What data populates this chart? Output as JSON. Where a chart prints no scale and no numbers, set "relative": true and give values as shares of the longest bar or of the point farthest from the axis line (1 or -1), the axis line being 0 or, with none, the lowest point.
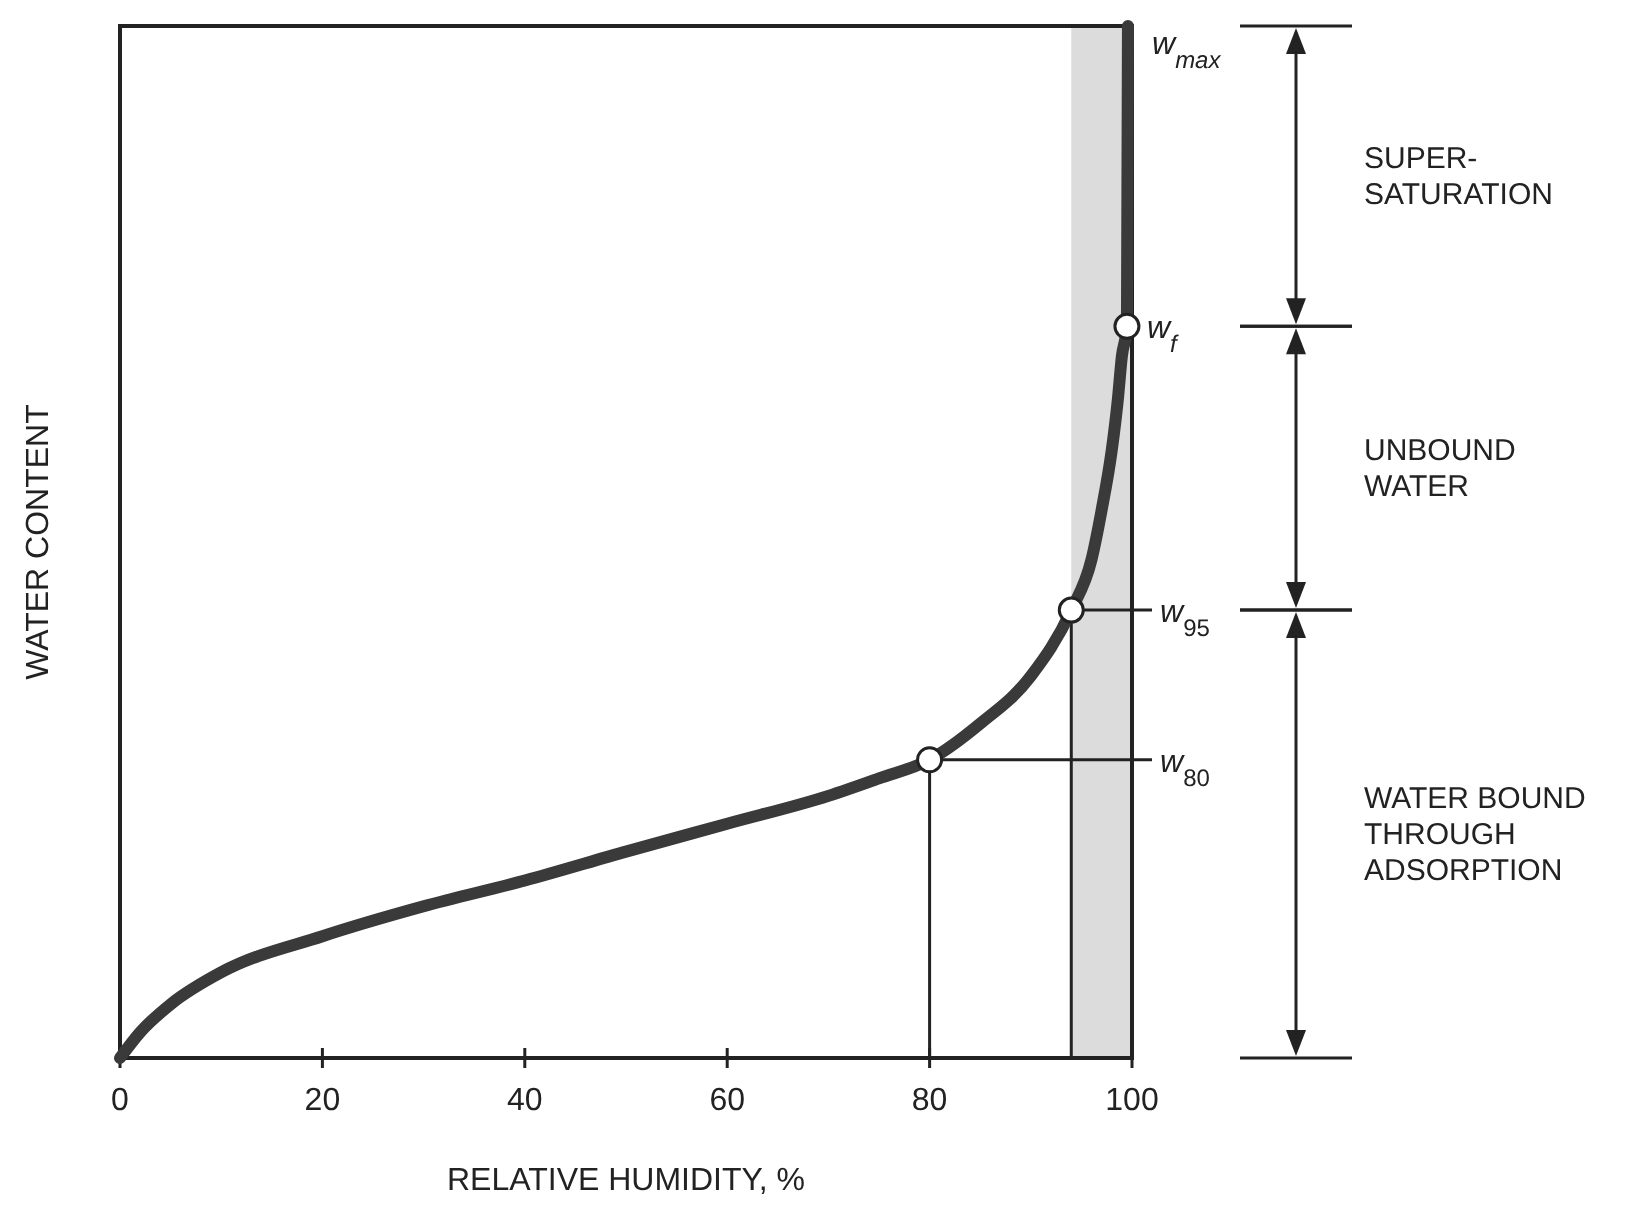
{
  "chart_data": {
    "type": "line",
    "relative": true,
    "xlabel": "RELATIVE HUMIDITY, %",
    "ylabel": "WATER CONTENT",
    "xlim": [
      0,
      100
    ],
    "xticks": [
      0,
      20,
      40,
      60,
      80,
      100
    ],
    "grid": false,
    "marker": "none",
    "line_style": "solid",
    "series": [
      {
        "color": "#3a3a3a",
        "x": [
          0,
          2,
          5,
          10,
          20,
          30,
          40,
          50,
          60,
          70,
          75,
          80,
          85,
          90,
          94,
          96,
          97,
          98,
          98.6,
          99,
          99.5,
          99.6
        ],
        "values": [
          0,
          0.025,
          0.052,
          0.083,
          0.118,
          0.147,
          0.172,
          0.2,
          0.227,
          0.254,
          0.271,
          0.289,
          0.324,
          0.37,
          0.434,
          0.483,
          0.531,
          0.589,
          0.638,
          0.68,
          0.709,
          1
        ]
      },
      {
        "type": "scatter",
        "color": "#ffffff",
        "marker": "circle",
        "x": [
          80,
          94,
          99.5
        ],
        "values": [
          0.289,
          0.434,
          0.709
        ]
      }
    ],
    "ref_lines": [
      {
        "axis": "x",
        "value": 80
      },
      {
        "axis": "x",
        "value": 94
      },
      {
        "axis": "y",
        "value": 0.289,
        "label": "w$_{80}$"
      },
      {
        "axis": "y",
        "value": 0.434,
        "label": "w$_{95}$"
      }
    ],
    "bands": [
      {
        "axis": "x",
        "from": 94,
        "to": 100,
        "color": "#dcdcdc"
      }
    ],
    "annotations": [
      {
        "text": "w$_{max}$",
        "x": 100,
        "y": 1
      },
      {
        "text": "w$_{f}$",
        "x": 99.5,
        "y": 0.709
      },
      "SUPER-\nSATURATION",
      "UNBOUND\nWATER",
      "WATER BOUND\nTHROUGH\nADSORPTION"
    ]
  }
}
